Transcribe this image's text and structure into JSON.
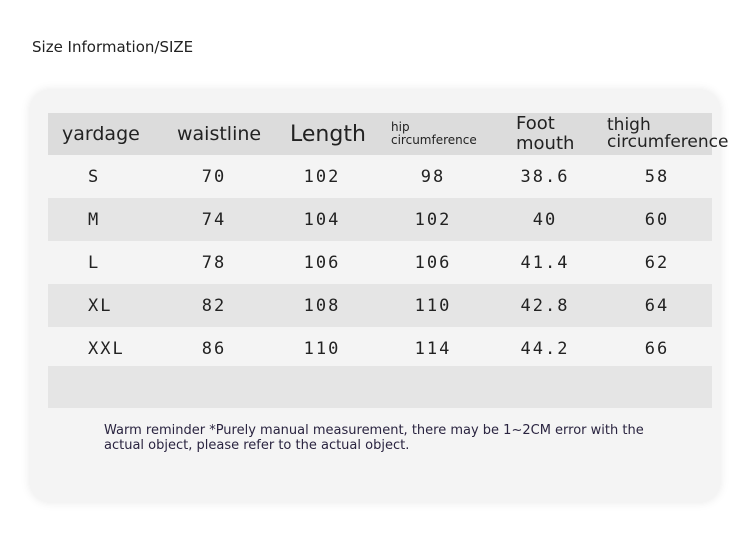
{
  "title": "Size Information/SIZE",
  "table": {
    "headers": [
      "yardage",
      "waistline",
      "Length",
      "hip circumference",
      "Foot mouth",
      "thigh circumference"
    ],
    "rows": [
      [
        "S",
        "70",
        "102",
        "98",
        "38.6",
        "58"
      ],
      [
        "M",
        "74",
        "104",
        "102",
        "40",
        "60"
      ],
      [
        "L",
        "78",
        "106",
        "106",
        "41.4",
        "62"
      ],
      [
        "XL",
        "82",
        "108",
        "110",
        "42.8",
        "64"
      ],
      [
        "XXL",
        "86",
        "110",
        "114",
        "44.2",
        "66"
      ]
    ]
  },
  "note": "Warm reminder *Purely manual measurement, there may be 1~2CM error with the actual object, please refer to the actual object."
}
